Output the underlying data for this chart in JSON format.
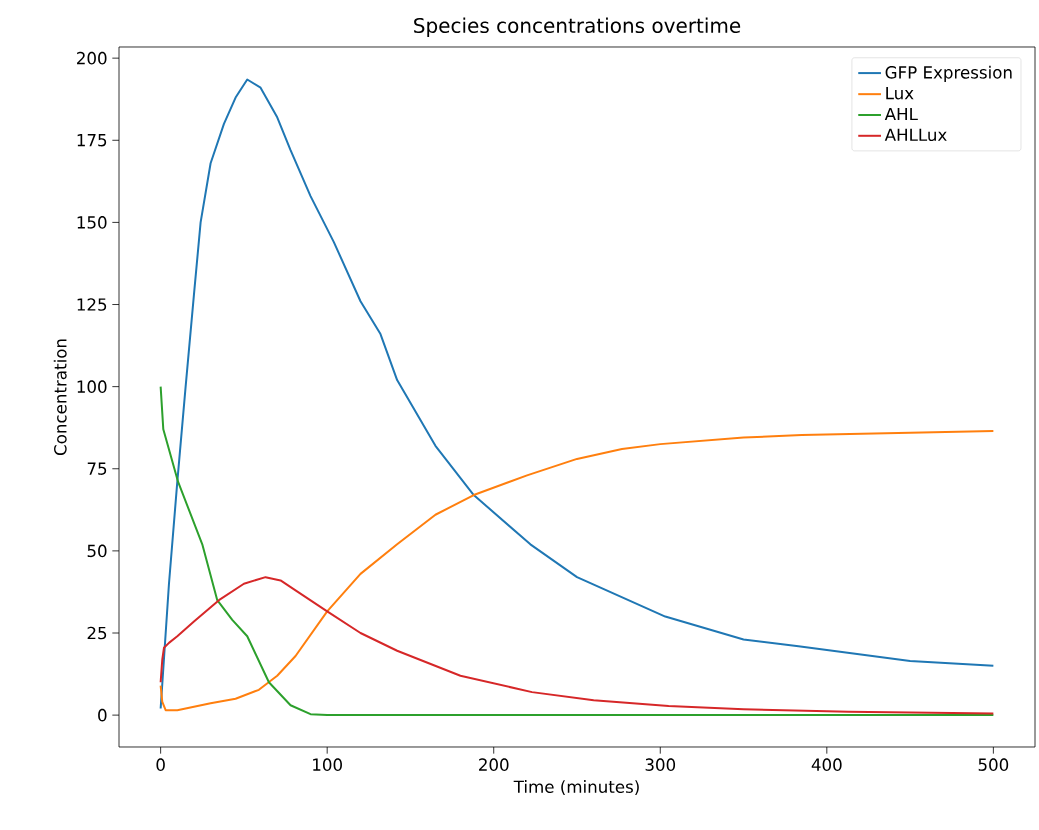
{
  "chart_data": {
    "type": "line",
    "title": "Species concentrations overtime",
    "xlabel": "Time (minutes)",
    "ylabel": "Concentration",
    "xlim": [
      -25,
      525
    ],
    "ylim": [
      -9.7,
      203.4
    ],
    "xticks": [
      0,
      100,
      200,
      300,
      400,
      500
    ],
    "yticks": [
      0,
      25,
      50,
      75,
      100,
      125,
      150,
      175,
      200
    ],
    "legend": "top right",
    "grid": false,
    "marker": "none",
    "line_style": "solid",
    "series": [
      {
        "name": "GFP Expression",
        "color": "#1f77b4",
        "x": [
          0,
          5,
          10,
          15,
          20,
          24,
          30,
          38,
          45,
          52,
          60,
          70,
          78,
          90,
          104,
          120,
          132,
          142,
          165,
          188,
          222,
          250,
          303,
          350,
          383,
          450,
          500
        ],
        "values": [
          2,
          40,
          71,
          100,
          128,
          150,
          168,
          180,
          188,
          193.5,
          191,
          182,
          172,
          158,
          144,
          126,
          116,
          102,
          82,
          67,
          52,
          42,
          30,
          23,
          21,
          16.5,
          15
        ]
      },
      {
        "name": "Lux",
        "color": "#ff7f0e",
        "x": [
          0,
          1,
          3,
          10,
          30,
          45,
          59,
          70,
          81,
          100,
          120,
          142,
          165,
          188,
          220,
          250,
          277,
          300,
          350,
          385,
          450,
          500
        ],
        "values": [
          9,
          4,
          1.5,
          1.5,
          3.6,
          5,
          7.7,
          12,
          18,
          31.6,
          43,
          52,
          61,
          67,
          73,
          78,
          81,
          82.5,
          84.5,
          85.3,
          86,
          86.5
        ]
      },
      {
        "name": "AHL",
        "color": "#2ca02c",
        "x": [
          0,
          1.6,
          10.5,
          25,
          34,
          43,
          52,
          65,
          78,
          90,
          100,
          200,
          300,
          400,
          500
        ],
        "values": [
          100,
          87,
          71,
          52,
          35,
          29,
          24,
          10,
          3,
          0.3,
          0,
          0,
          0,
          0,
          0
        ]
      },
      {
        "name": "AHLLux",
        "color": "#d62728",
        "x": [
          0,
          1,
          2,
          5,
          10,
          20,
          35,
          50,
          63,
          72,
          81,
          100,
          120,
          142,
          180,
          223,
          260,
          305,
          350,
          413,
          500
        ],
        "values": [
          10,
          17,
          20.5,
          22,
          24,
          28.5,
          35,
          40,
          42,
          41,
          38,
          31.6,
          25,
          19.6,
          12,
          7,
          4.5,
          2.8,
          1.8,
          1,
          0.5
        ]
      }
    ]
  }
}
